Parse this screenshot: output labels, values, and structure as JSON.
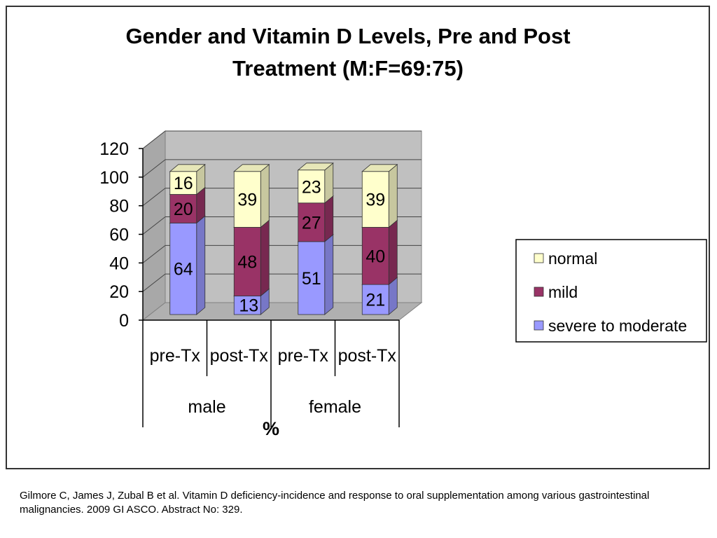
{
  "chart_data": {
    "type": "bar",
    "stacked": true,
    "three_d": true,
    "title_lines": [
      "Gender and Vitamin D Levels, Pre and Post",
      "Treatment (M:F=69:75)"
    ],
    "xlabel": "%",
    "ylabel": "",
    "ylim": [
      0,
      120
    ],
    "yticks": [
      0,
      20,
      40,
      60,
      80,
      100,
      120
    ],
    "grid": true,
    "categories": [
      "pre-Tx",
      "post-Tx",
      "pre-Tx",
      "post-Tx"
    ],
    "groups": [
      {
        "name": "male",
        "categories": [
          0,
          1
        ]
      },
      {
        "name": "female",
        "categories": [
          2,
          3
        ]
      }
    ],
    "series": [
      {
        "name": "severe to moderate",
        "color": "#9999ff",
        "values": [
          64,
          13,
          51,
          21
        ]
      },
      {
        "name": "mild",
        "color": "#993366",
        "values": [
          20,
          48,
          27,
          40
        ]
      },
      {
        "name": "normal",
        "color": "#ffffcc",
        "values": [
          16,
          39,
          23,
          39
        ]
      }
    ],
    "legend_position": "right"
  },
  "citation": "Gilmore C, James J, Zubal B et al. Vitamin D deficiency-incidence and response to oral supplementation among various gastrointestinal malignancies. 2009 GI ASCO. Abstract No: 329."
}
